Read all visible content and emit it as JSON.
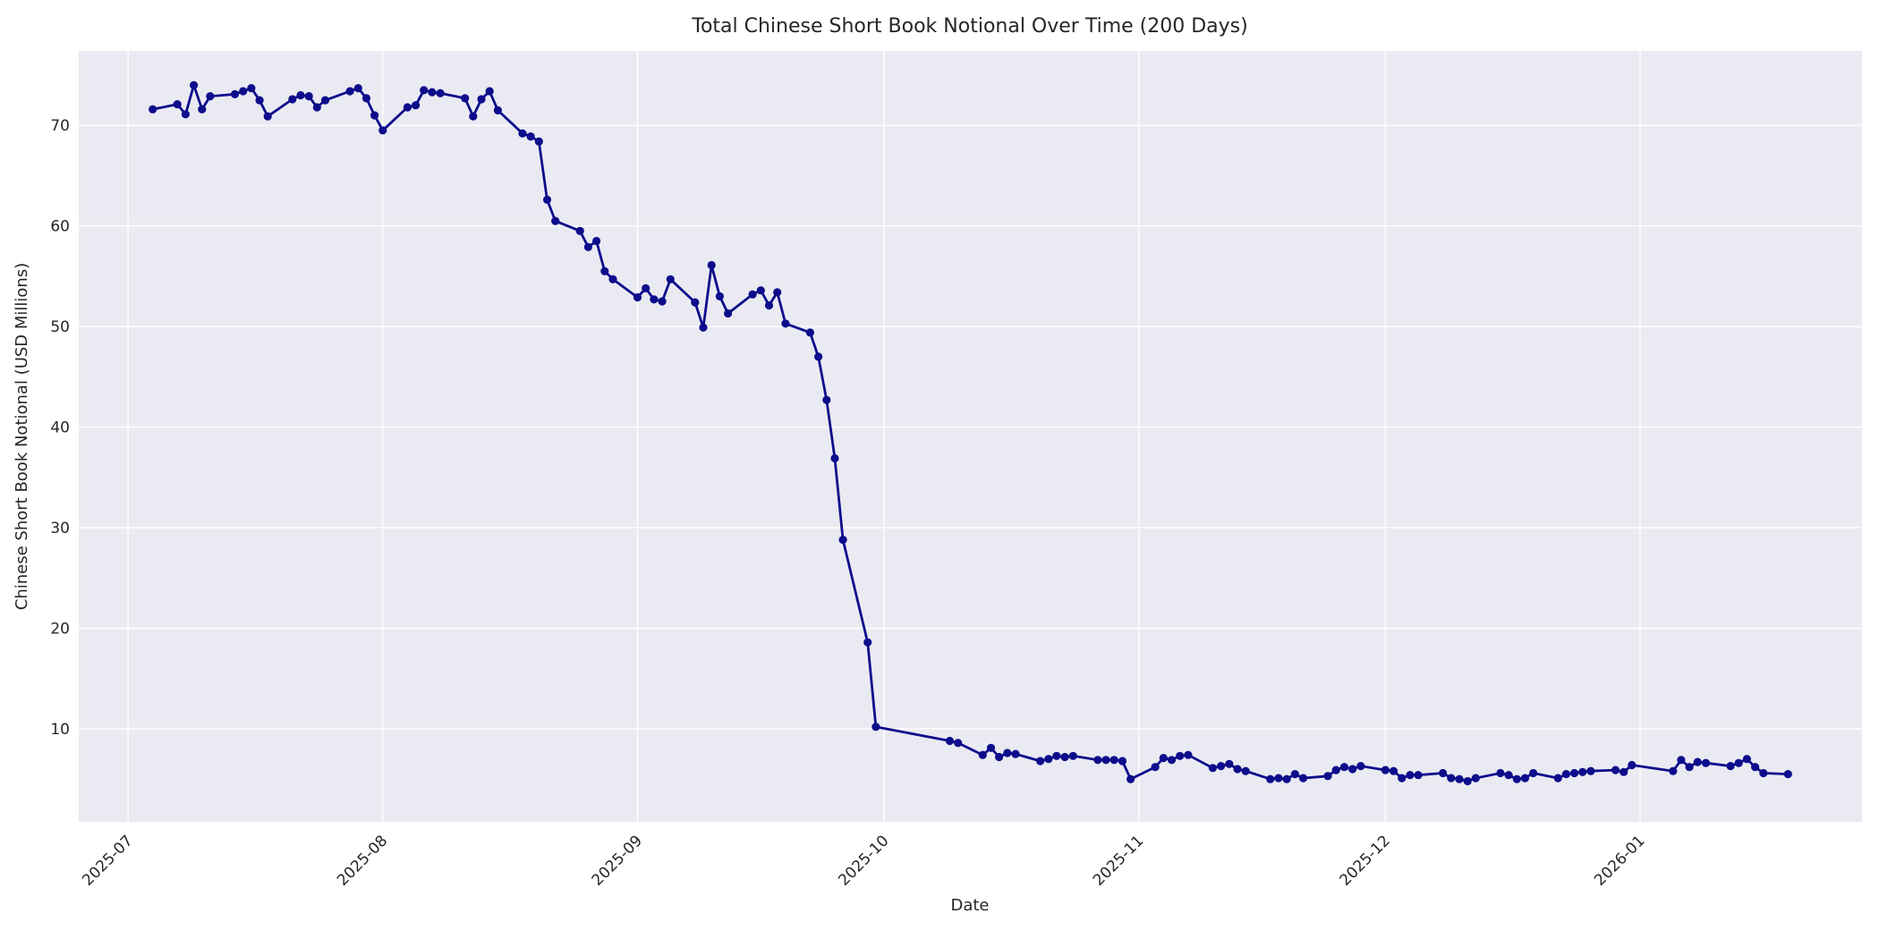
{
  "figure": {
    "title": "Total Chinese Short Book Notional Over Time (200 Days)",
    "xlabel": "Date",
    "ylabel": "Chinese Short Book Notional (USD Millions)"
  },
  "colors": {
    "line": "#0d0d8c",
    "marker": "#0d0d8c",
    "plot_background": "#eaeaf2",
    "gridline": "#ffffff",
    "figure_background": "#ffffff",
    "text": "#262626"
  },
  "chart_data": {
    "type": "line",
    "title": "Total Chinese Short Book Notional Over Time (200 Days)",
    "xlabel": "Date",
    "ylabel": "Chinese Short Book Notional (USD Millions)",
    "legend": "none",
    "grid": true,
    "marker_style": "circle",
    "x_tick_labels": [
      "2025-07",
      "2025-08",
      "2025-09",
      "2025-10",
      "2025-11",
      "2025-12",
      "2026-01"
    ],
    "y_ticks": [
      10,
      20,
      30,
      40,
      50,
      60,
      70
    ],
    "ylim": [
      0.75,
      77.4
    ],
    "xlim": [
      "2025-06-25",
      "2026-01-28"
    ],
    "dates": [
      "2025-07-04",
      "2025-07-07",
      "2025-07-08",
      "2025-07-09",
      "2025-07-10",
      "2025-07-11",
      "2025-07-14",
      "2025-07-15",
      "2025-07-16",
      "2025-07-17",
      "2025-07-18",
      "2025-07-21",
      "2025-07-22",
      "2025-07-23",
      "2025-07-24",
      "2025-07-25",
      "2025-07-28",
      "2025-07-29",
      "2025-07-30",
      "2025-07-31",
      "2025-08-01",
      "2025-08-04",
      "2025-08-05",
      "2025-08-06",
      "2025-08-07",
      "2025-08-08",
      "2025-08-11",
      "2025-08-12",
      "2025-08-13",
      "2025-08-14",
      "2025-08-15",
      "2025-08-18",
      "2025-08-19",
      "2025-08-20",
      "2025-08-21",
      "2025-08-22",
      "2025-08-25",
      "2025-08-26",
      "2025-08-27",
      "2025-08-28",
      "2025-08-29",
      "2025-09-01",
      "2025-09-02",
      "2025-09-03",
      "2025-09-04",
      "2025-09-05",
      "2025-09-08",
      "2025-09-09",
      "2025-09-10",
      "2025-09-11",
      "2025-09-12",
      "2025-09-15",
      "2025-09-16",
      "2025-09-17",
      "2025-09-18",
      "2025-09-19",
      "2025-09-22",
      "2025-09-23",
      "2025-09-24",
      "2025-09-25",
      "2025-09-26",
      "2025-09-29",
      "2025-09-30",
      "2025-10-09",
      "2025-10-10",
      "2025-10-13",
      "2025-10-14",
      "2025-10-15",
      "2025-10-16",
      "2025-10-17",
      "2025-10-20",
      "2025-10-21",
      "2025-10-22",
      "2025-10-23",
      "2025-10-24",
      "2025-10-27",
      "2025-10-28",
      "2025-10-29",
      "2025-10-30",
      "2025-10-31",
      "2025-11-03",
      "2025-11-04",
      "2025-11-05",
      "2025-11-06",
      "2025-11-07",
      "2025-11-10",
      "2025-11-11",
      "2025-11-12",
      "2025-11-13",
      "2025-11-14",
      "2025-11-17",
      "2025-11-18",
      "2025-11-19",
      "2025-11-20",
      "2025-11-21",
      "2025-11-24",
      "2025-11-25",
      "2025-11-26",
      "2025-11-27",
      "2025-11-28",
      "2025-12-01",
      "2025-12-02",
      "2025-12-03",
      "2025-12-04",
      "2025-12-05",
      "2025-12-08",
      "2025-12-09",
      "2025-12-10",
      "2025-12-11",
      "2025-12-12",
      "2025-12-15",
      "2025-12-16",
      "2025-12-17",
      "2025-12-18",
      "2025-12-19",
      "2025-12-22",
      "2025-12-23",
      "2025-12-24",
      "2025-12-25",
      "2025-12-26",
      "2025-12-29",
      "2025-12-30",
      "2025-12-31",
      "2026-01-05",
      "2026-01-06",
      "2026-01-07",
      "2026-01-08",
      "2026-01-09",
      "2026-01-12",
      "2026-01-13",
      "2026-01-14",
      "2026-01-15",
      "2026-01-16",
      "2026-01-19"
    ],
    "values": [
      71.6,
      72.1,
      71.1,
      74.0,
      71.6,
      72.9,
      73.1,
      73.4,
      73.7,
      72.5,
      70.9,
      72.6,
      73.0,
      72.9,
      71.8,
      72.5,
      73.4,
      73.7,
      72.7,
      71.0,
      69.5,
      71.8,
      72.0,
      73.5,
      73.3,
      73.2,
      72.7,
      70.9,
      72.6,
      73.4,
      71.5,
      69.2,
      68.9,
      68.4,
      62.6,
      60.5,
      59.5,
      57.9,
      58.5,
      55.5,
      54.7,
      52.9,
      53.8,
      52.7,
      52.5,
      54.7,
      52.4,
      49.9,
      56.1,
      53.0,
      51.3,
      53.2,
      53.6,
      52.1,
      53.4,
      50.3,
      49.4,
      47.0,
      42.7,
      36.9,
      28.8,
      18.6,
      10.2,
      8.8,
      8.6,
      7.4,
      8.1,
      7.2,
      7.6,
      7.5,
      6.8,
      7.0,
      7.3,
      7.2,
      7.3,
      6.9,
      6.9,
      6.9,
      6.8,
      5.0,
      6.2,
      7.1,
      6.9,
      7.3,
      7.4,
      6.1,
      6.3,
      6.5,
      6.0,
      5.8,
      5.0,
      5.1,
      5.0,
      5.5,
      5.1,
      5.3,
      5.9,
      6.2,
      6.0,
      6.3,
      5.9,
      5.8,
      5.1,
      5.4,
      5.4,
      5.6,
      5.1,
      5.0,
      4.8,
      5.1,
      5.6,
      5.4,
      5.0,
      5.1,
      5.6,
      5.1,
      5.5,
      5.6,
      5.7,
      5.8,
      5.9,
      5.7,
      6.4,
      5.8,
      6.9,
      6.2,
      6.7,
      6.6,
      6.3,
      6.6,
      7.0,
      6.2,
      5.6,
      5.5
    ]
  }
}
